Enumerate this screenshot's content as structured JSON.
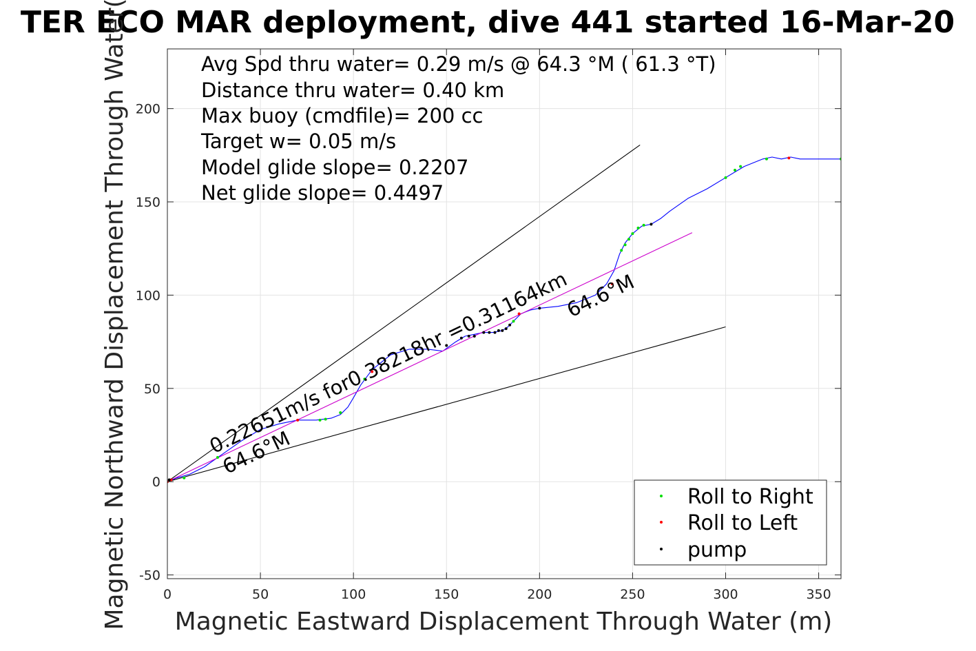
{
  "chart_data": {
    "type": "scatter",
    "title": "TER ECO MAR deployment, dive 441 started 16-Mar-20",
    "xlabel": "Magnetic Eastward Displacement Through Water (m)",
    "ylabel": "Magnetic Northward Displacement Through Water(",
    "xlim": [
      0,
      362
    ],
    "ylim": [
      -52,
      232
    ],
    "xticks": [
      0,
      50,
      100,
      150,
      200,
      250,
      300,
      350
    ],
    "yticks": [
      -50,
      0,
      50,
      100,
      150,
      200
    ],
    "grid": true,
    "legend_position": "bottom-right",
    "info_lines": [
      "Avg Spd thru water=  0.29 m/s @  64.3 °M ( 61.3 °T)",
      "Distance thru water=  0.40 km",
      "Max buoy (cmdfile)= 200 cc",
      "Target w= 0.05 m/s",
      "Model glide slope= 0.2207",
      "Net glide slope= 0.4497"
    ],
    "annotations": [
      {
        "text": "0.22651m/s for0.38218hr =0.31164km",
        "x": 25,
        "y": 15,
        "angle": -25.6
      },
      {
        "text": "64.6°M",
        "x": 32,
        "y": 4,
        "angle": -25.6
      },
      {
        "text": "64.6°M",
        "x": 217,
        "y": 88,
        "angle": -25.6
      }
    ],
    "series": [
      {
        "kind": "line",
        "color": "#0000ff",
        "x": [
          0,
          5,
          12,
          20,
          30,
          40,
          50,
          60,
          70,
          80,
          88,
          93,
          97,
          100,
          104,
          110,
          120,
          130,
          140,
          148,
          155,
          160,
          165,
          170,
          175,
          180,
          183,
          186,
          190,
          195,
          200,
          210,
          220,
          230,
          236,
          240,
          243,
          246,
          250,
          255,
          260,
          265,
          270,
          280,
          290,
          300,
          310,
          320,
          325,
          330,
          335,
          340,
          350,
          362
        ],
        "y": [
          0,
          2,
          4,
          8,
          15,
          22,
          28,
          31,
          33,
          33,
          34,
          36,
          40,
          45,
          52,
          60,
          68,
          71,
          71,
          70,
          75,
          78,
          79,
          80,
          80,
          81,
          83,
          86,
          90,
          92,
          93,
          94,
          96,
          100,
          106,
          113,
          122,
          128,
          133,
          137,
          138,
          141,
          145,
          152,
          157,
          163,
          169,
          173,
          174,
          173,
          174,
          173,
          173,
          173
        ]
      },
      {
        "kind": "line",
        "color": "#cc00cc",
        "x": [
          0,
          282
        ],
        "y": [
          0,
          133.5
        ]
      },
      {
        "kind": "line",
        "color": "#000000",
        "x": [
          0,
          254
        ],
        "y": [
          0,
          180.5
        ]
      },
      {
        "kind": "line",
        "color": "#000000",
        "x": [
          0,
          300
        ],
        "y": [
          0,
          83
        ]
      },
      {
        "kind": "points",
        "name": "Roll to Right",
        "color": "#00dd00",
        "x": [
          9,
          27,
          82,
          85,
          93,
          106,
          186,
          244,
          246,
          248,
          250,
          253,
          256,
          300,
          305,
          308,
          322,
          362
        ],
        "y": [
          2,
          13,
          33,
          33.5,
          37,
          55,
          86,
          124,
          127,
          130,
          133,
          136,
          137.5,
          163,
          167,
          169,
          173,
          173
        ]
      },
      {
        "kind": "points",
        "name": "Roll to Left",
        "color": "#ff0000",
        "x": [
          0,
          2,
          70,
          110,
          189,
          239,
          334
        ],
        "y": [
          0,
          1,
          33,
          59,
          90,
          106,
          173.5
        ]
      },
      {
        "kind": "points",
        "name": "pump",
        "color": "#000000",
        "x": [
          1,
          150,
          158,
          162,
          165,
          170,
          173,
          176,
          178,
          180,
          182,
          184,
          200,
          260
        ],
        "y": [
          1,
          73,
          77,
          78,
          78,
          80,
          80,
          80,
          81,
          81,
          82,
          84,
          93,
          138
        ]
      }
    ]
  }
}
